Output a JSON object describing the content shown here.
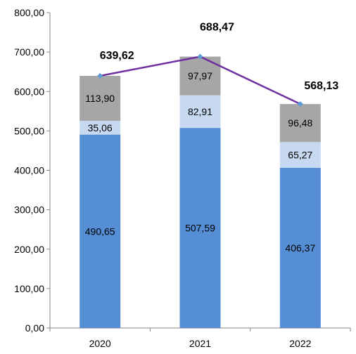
{
  "chart_data": {
    "type": "bar",
    "stacked": true,
    "categories": [
      "2020",
      "2021",
      "2022"
    ],
    "series": [
      {
        "values": [
          490.65,
          507.59,
          406.37
        ],
        "labels": [
          "490,65",
          "507,59",
          "406,37"
        ],
        "color": "#558ED5"
      },
      {
        "values": [
          35.06,
          82.91,
          65.27
        ],
        "labels": [
          "35,06",
          "82,91",
          "65,27"
        ],
        "color": "#C6D9F1"
      },
      {
        "values": [
          113.9,
          97.97,
          96.48
        ],
        "labels": [
          "113,90",
          "97,97",
          "96,48"
        ],
        "color": "#A6A6A6"
      }
    ],
    "totals": {
      "values": [
        639.62,
        688.47,
        568.13
      ],
      "labels": [
        "639,62",
        "688,47",
        "568,13"
      ],
      "line_color": "#7030A0",
      "marker_color": "#5B9BD5"
    },
    "ylim": [
      0,
      800
    ],
    "yticks": [
      0,
      100,
      200,
      300,
      400,
      500,
      600,
      700,
      800
    ],
    "ytick_labels": [
      "0,00",
      "100,00",
      "200,00",
      "300,00",
      "400,00",
      "500,00",
      "600,00",
      "700,00",
      "800,00"
    ],
    "grid": false,
    "legend": "none",
    "title": "",
    "xlabel": "",
    "ylabel": ""
  }
}
